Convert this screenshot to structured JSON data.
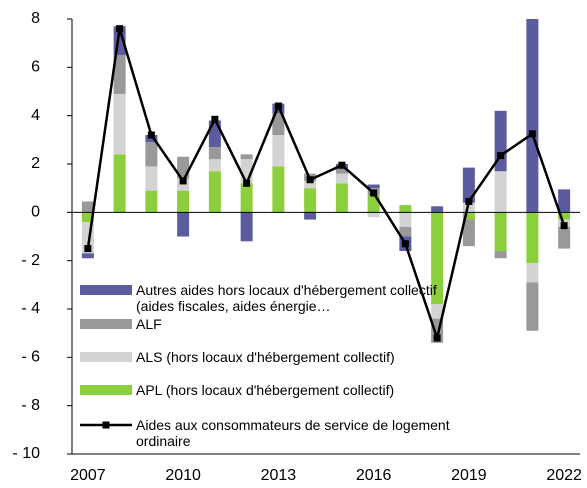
{
  "chart_data": {
    "type": "bar",
    "categories": [
      "2007",
      null,
      null,
      "2010",
      null,
      null,
      "2013",
      null,
      null,
      "2016",
      null,
      null,
      "2019",
      null,
      null,
      "2022"
    ],
    "series": [
      {
        "name": "APL (hors locaux d'hébergement collectif)",
        "color": "#8ccf3c",
        "values": [
          -0.4,
          2.4,
          0.9,
          0.9,
          1.7,
          1.2,
          1.9,
          1.0,
          1.2,
          0.7,
          0.3,
          -3.8,
          -0.3,
          -1.6,
          -2.1,
          -0.3
        ]
      },
      {
        "name": "ALS (hors locaux d'hébergement collectif)",
        "color": "#d3d3d3",
        "values": [
          -1.3,
          2.5,
          1.0,
          0.5,
          0.5,
          1.0,
          1.3,
          0.3,
          0.4,
          -0.2,
          -0.6,
          -0.6,
          0.4,
          1.7,
          -0.8,
          -0.3
        ]
      },
      {
        "name": "ALF",
        "color": "#999999",
        "values": [
          0.45,
          1.6,
          1.0,
          0.9,
          0.5,
          0.2,
          0.9,
          0.3,
          0.2,
          0.3,
          -0.4,
          -1.0,
          -1.1,
          -0.3,
          -2.0,
          -0.9
        ]
      },
      {
        "name": "Autres aides hors locaux d'hébergement collectif (aides fiscales, aides énergie…",
        "color": "#5b5b9e",
        "values": [
          -0.2,
          1.2,
          0.3,
          -1.0,
          1.1,
          -1.2,
          0.4,
          -0.3,
          0.2,
          0.15,
          -0.6,
          0.25,
          1.45,
          2.5,
          8.1,
          0.95
        ]
      },
      {
        "name": "Aides aux consommateurs de service de logement ordinaire",
        "color": "#000000",
        "type": "line",
        "values": [
          -1.5,
          7.6,
          3.2,
          1.3,
          3.85,
          1.2,
          4.4,
          1.35,
          1.95,
          0.8,
          -1.3,
          -5.2,
          0.45,
          2.35,
          3.25,
          -0.55
        ]
      }
    ],
    "ylim": [
      -10,
      8
    ],
    "yticks": [
      {
        "value": -10,
        "label": "- 10"
      },
      {
        "value": -8,
        "label": "- 8"
      },
      {
        "value": -6,
        "label": "- 6"
      },
      {
        "value": -4,
        "label": "- 4"
      },
      {
        "value": -2,
        "label": "- 2"
      },
      0,
      2,
      4,
      6,
      8
    ],
    "legend": "lower left"
  }
}
